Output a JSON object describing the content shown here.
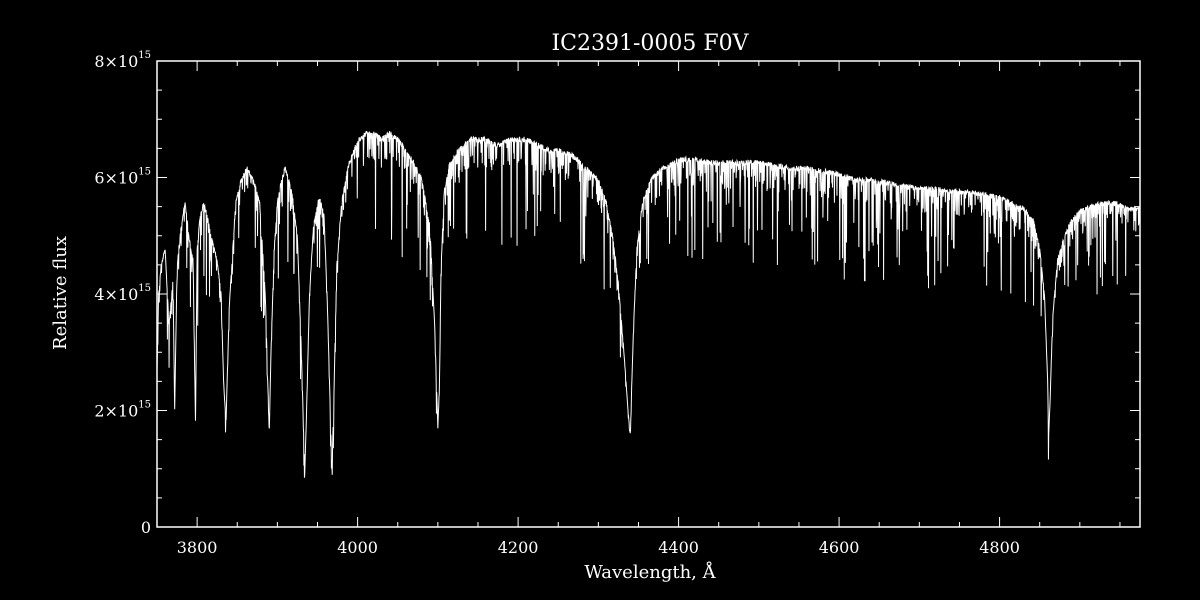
{
  "chart_data": {
    "type": "line",
    "title": "IC2391-0005  F0V",
    "xlabel": "Wavelength, Å",
    "ylabel": "Relative flux",
    "xlim": [
      3750,
      4975
    ],
    "ylim": [
      0,
      8000000000000000.0
    ],
    "x_ticks": [
      3800,
      4000,
      4200,
      4400,
      4600,
      4800
    ],
    "x_tick_labels": [
      "3800",
      "4000",
      "4200",
      "4400",
      "4600",
      "4800"
    ],
    "y_ticks": [
      0,
      2000000000000000.0,
      4000000000000000.0,
      6000000000000000.0,
      8000000000000000.0
    ],
    "y_tick_labels": [
      {
        "mantissa": "0",
        "exponent": ""
      },
      {
        "mantissa": "2×10",
        "exponent": "15"
      },
      {
        "mantissa": "4×10",
        "exponent": "15"
      },
      {
        "mantissa": "6×10",
        "exponent": "15"
      },
      {
        "mantissa": "8×10",
        "exponent": "15"
      }
    ],
    "grid": false,
    "line_color": "#ffffff",
    "background": "#000000",
    "series": [
      {
        "x": [
          3750,
          3752,
          3755,
          3760,
          3765,
          3770,
          3772,
          3775,
          3780,
          3785,
          3790,
          3795,
          3798,
          3800,
          3803,
          3808,
          3812,
          3818,
          3825,
          3830,
          3833,
          3836,
          3840,
          3848,
          3855,
          3862,
          3870,
          3878,
          3885,
          3888,
          3890,
          3892,
          3896,
          3900,
          3905,
          3910,
          3918,
          3925,
          3930,
          3933,
          3934,
          3936,
          3940,
          3945,
          3952,
          3958,
          3962,
          3966,
          3968,
          3970,
          3974,
          3980,
          3988,
          3995,
          4002,
          4010,
          4020,
          4030,
          4040,
          4050,
          4060,
          4070,
          4080,
          4090,
          4096,
          4100,
          4102,
          4104,
          4108,
          4115,
          4125,
          4140,
          4150,
          4160,
          4175,
          4190,
          4200,
          4210,
          4225,
          4240,
          4255,
          4270,
          4285,
          4300,
          4310,
          4318,
          4325,
          4332,
          4336,
          4339,
          4340,
          4341,
          4344,
          4348,
          4355,
          4365,
          4380,
          4400,
          4420,
          4440,
          4460,
          4480,
          4500,
          4520,
          4540,
          4560,
          4580,
          4600,
          4620,
          4640,
          4660,
          4680,
          4700,
          4720,
          4740,
          4760,
          4780,
          4800,
          4815,
          4830,
          4842,
          4850,
          4856,
          4860,
          4861,
          4863,
          4866,
          4872,
          4880,
          4890,
          4900,
          4915,
          4930,
          4945,
          4960,
          4975
        ],
        "y": [
          2700000000000000.0,
          4000000000000000.0,
          4500000000000000.0,
          4800000000000000.0,
          3500000000000000.0,
          4300000000000000.0,
          2000000000000000.0,
          4500000000000000.0,
          5200000000000000.0,
          5600000000000000.0,
          5000000000000000.0,
          4600000000000000.0,
          1800000000000000.0,
          4800000000000000.0,
          5300000000000000.0,
          5600000000000000.0,
          5400000000000000.0,
          5000000000000000.0,
          4600000000000000.0,
          4000000000000000.0,
          2500000000000000.0,
          1800000000000000.0,
          3800000000000000.0,
          5600000000000000.0,
          6000000000000000.0,
          6200000000000000.0,
          6000000000000000.0,
          5600000000000000.0,
          4000000000000000.0,
          2500000000000000.0,
          1700000000000000.0,
          3000000000000000.0,
          4800000000000000.0,
          5600000000000000.0,
          6000000000000000.0,
          6200000000000000.0,
          5800000000000000.0,
          5000000000000000.0,
          3000000000000000.0,
          1500000000000000.0,
          900000000000000.0,
          1800000000000000.0,
          4000000000000000.0,
          5200000000000000.0,
          5700000000000000.0,
          5400000000000000.0,
          4000000000000000.0,
          2000000000000000.0,
          1000000000000000.0,
          2000000000000000.0,
          4500000000000000.0,
          5600000000000000.0,
          6200000000000000.0,
          6500000000000000.0,
          6700000000000000.0,
          6800000000000000.0,
          6800000000000000.0,
          6700000000000000.0,
          6800000000000000.0,
          6700000000000000.0,
          6500000000000000.0,
          6300000000000000.0,
          6000000000000000.0,
          5200000000000000.0,
          3500000000000000.0,
          1700000000000000.0,
          2500000000000000.0,
          4500000000000000.0,
          5800000000000000.0,
          6300000000000000.0,
          6500000000000000.0,
          6700000000000000.0,
          6700000000000000.0,
          6700000000000000.0,
          6600000000000000.0,
          6700000000000000.0,
          6700000000000000.0,
          6700000000000000.0,
          6600000000000000.0,
          6500000000000000.0,
          6500000000000000.0,
          6400000000000000.0,
          6200000000000000.0,
          6000000000000000.0,
          5600000000000000.0,
          5000000000000000.0,
          4200000000000000.0,
          3000000000000000.0,
          2200000000000000.0,
          1700000000000000.0,
          1600000000000000.0,
          2200000000000000.0,
          3500000000000000.0,
          4800000000000000.0,
          5600000000000000.0,
          6000000000000000.0,
          6200000000000000.0,
          6350000000000000.0,
          6350000000000000.0,
          6300000000000000.0,
          6300000000000000.0,
          6300000000000000.0,
          6300000000000000.0,
          6250000000000000.0,
          6200000000000000.0,
          6200000000000000.0,
          6150000000000000.0,
          6100000000000000.0,
          6000000000000000.0,
          6000000000000000.0,
          5950000000000000.0,
          5900000000000000.0,
          5850000000000000.0,
          5850000000000000.0,
          5800000000000000.0,
          5800000000000000.0,
          5750000000000000.0,
          5700000000000000.0,
          5600000000000000.0,
          5500000000000000.0,
          5300000000000000.0,
          4800000000000000.0,
          4000000000000000.0,
          2500000000000000.0,
          1500000000000000.0,
          2200000000000000.0,
          3600000000000000.0,
          4600000000000000.0,
          5000000000000000.0,
          5300000000000000.0,
          5450000000000000.0,
          5550000000000000.0,
          5600000000000000.0,
          5600000000000000.0,
          5500000000000000.0,
          5500000000000000.0
        ]
      }
    ]
  }
}
